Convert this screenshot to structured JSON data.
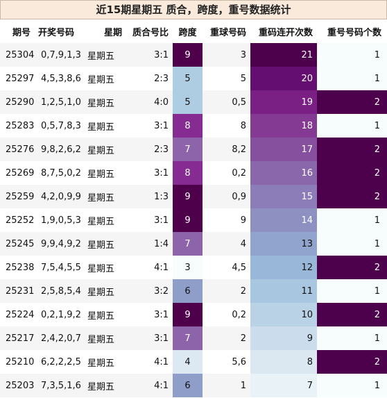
{
  "title": "近15期星期五 质合，跨度，重号数据统计",
  "columns": [
    "期号",
    "开奖号码",
    "星期",
    "质合号比",
    "跨度",
    "重球号码",
    "重码连开次数",
    "重号号码个数"
  ],
  "rows": [
    {
      "issue": "25304",
      "numbers": "0,7,9,1,3",
      "weekday": "星期五",
      "ratio": "3:1",
      "span": "9",
      "repeat": "3",
      "consecutive": "21",
      "count": "1"
    },
    {
      "issue": "25297",
      "numbers": "4,5,3,8,6",
      "weekday": "星期五",
      "ratio": "2:3",
      "span": "5",
      "repeat": "5",
      "consecutive": "20",
      "count": "1"
    },
    {
      "issue": "25290",
      "numbers": "1,2,5,1,0",
      "weekday": "星期五",
      "ratio": "4:0",
      "span": "5",
      "repeat": "0,5",
      "consecutive": "19",
      "count": "2"
    },
    {
      "issue": "25283",
      "numbers": "0,5,7,8,3",
      "weekday": "星期五",
      "ratio": "3:1",
      "span": "8",
      "repeat": "8",
      "consecutive": "18",
      "count": "1"
    },
    {
      "issue": "25276",
      "numbers": "9,8,2,6,2",
      "weekday": "星期五",
      "ratio": "2:3",
      "span": "7",
      "repeat": "8,2",
      "consecutive": "17",
      "count": "2"
    },
    {
      "issue": "25269",
      "numbers": "8,7,5,0,2",
      "weekday": "星期五",
      "ratio": "3:1",
      "span": "8",
      "repeat": "0,2",
      "consecutive": "16",
      "count": "2"
    },
    {
      "issue": "25259",
      "numbers": "4,2,0,9,9",
      "weekday": "星期五",
      "ratio": "1:3",
      "span": "9",
      "repeat": "0,9",
      "consecutive": "15",
      "count": "2"
    },
    {
      "issue": "25252",
      "numbers": "1,9,0,5,3",
      "weekday": "星期五",
      "ratio": "3:1",
      "span": "9",
      "repeat": "9",
      "consecutive": "14",
      "count": "1"
    },
    {
      "issue": "25245",
      "numbers": "9,9,4,9,2",
      "weekday": "星期五",
      "ratio": "1:4",
      "span": "7",
      "repeat": "4",
      "consecutive": "13",
      "count": "1"
    },
    {
      "issue": "25238",
      "numbers": "7,5,4,5,5",
      "weekday": "星期五",
      "ratio": "4:1",
      "span": "3",
      "repeat": "4,5",
      "consecutive": "12",
      "count": "2"
    },
    {
      "issue": "25231",
      "numbers": "2,5,8,5,4",
      "weekday": "星期五",
      "ratio": "3:2",
      "span": "6",
      "repeat": "2",
      "consecutive": "11",
      "count": "1"
    },
    {
      "issue": "25224",
      "numbers": "0,2,1,9,2",
      "weekday": "星期五",
      "ratio": "3:1",
      "span": "9",
      "repeat": "0,2",
      "consecutive": "10",
      "count": "2"
    },
    {
      "issue": "25217",
      "numbers": "2,4,2,0,7",
      "weekday": "星期五",
      "ratio": "3:1",
      "span": "7",
      "repeat": "2",
      "consecutive": "9",
      "count": "1"
    },
    {
      "issue": "25210",
      "numbers": "6,2,2,2,5",
      "weekday": "星期五",
      "ratio": "4:1",
      "span": "4",
      "repeat": "5,6",
      "consecutive": "8",
      "count": "2"
    },
    {
      "issue": "25203",
      "numbers": "7,3,5,1,6",
      "weekday": "星期五",
      "ratio": "4:1",
      "span": "6",
      "repeat": "1",
      "consecutive": "7",
      "count": "1"
    }
  ],
  "colors": {
    "title_bg": "#f9eadb",
    "row_stripe": "#f5f5f5",
    "span_scale": {
      "3": "#f7fcfd",
      "4": "#dce9f3",
      "5": "#aecde2",
      "6": "#8f9ec9",
      "7": "#8d63aa",
      "8": "#852b91",
      "9": "#4f004b"
    },
    "consecutive_scale": [
      "#f7fcfd",
      "#e9f2f7",
      "#dbe8f2",
      "#cbdded",
      "#b9d2e6",
      "#a8c6df",
      "#99b7d8",
      "#91a4cd",
      "#8e90c2",
      "#8c7cb7",
      "#8a66ab",
      "#87509f",
      "#843a93",
      "#7a2084",
      "#650e71",
      "#4d004b"
    ],
    "count_scale": {
      "1": "#f7fcfd",
      "2": "#4d004b"
    }
  }
}
